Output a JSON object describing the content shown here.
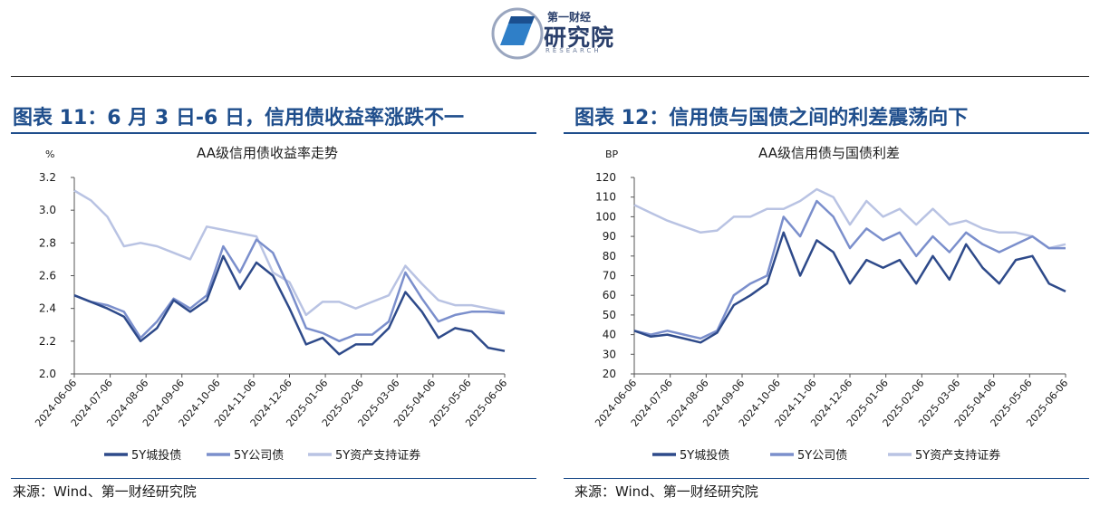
{
  "header": {
    "logo_top": "第一财经",
    "logo_main": "研究院",
    "logo_sub": "RESEARCH"
  },
  "left_panel": {
    "figure_title": "图表 11：6 月 3 日-6 日，信用债收益率涨跌不一",
    "source": "来源：Wind、第一财经研究院"
  },
  "right_panel": {
    "figure_title": "图表 12：信用债与国债之间的利差震荡向下",
    "source": "来源：Wind、第一财经研究院"
  },
  "chart_data": [
    {
      "type": "line",
      "title": "AA级信用债收益率走势",
      "ylabel": "%",
      "ylim": [
        2.0,
        3.2
      ],
      "yticks": [
        2.0,
        2.2,
        2.4,
        2.6,
        2.8,
        3.0,
        3.2
      ],
      "ytick_labels": [
        "2.0",
        "2.2",
        "2.4",
        "2.6",
        "2.8",
        "3.0",
        "3.2"
      ],
      "x_labels": [
        "2024-06-06",
        "2024-07-06",
        "2024-08-06",
        "2024-09-06",
        "2024-10-06",
        "2024-11-06",
        "2024-12-06",
        "2025-01-06",
        "2025-02-06",
        "2025-03-06",
        "2025-04-06",
        "2025-05-06",
        "2025-06-06"
      ],
      "grid": false,
      "legend_position": "bottom",
      "colors": [
        "#2e4a8a",
        "#7b8fcc",
        "#b9c3e3"
      ],
      "series": [
        {
          "name": "5Y城投债",
          "values": [
            2.48,
            2.44,
            2.4,
            2.35,
            2.2,
            2.28,
            2.45,
            2.38,
            2.45,
            2.72,
            2.52,
            2.68,
            2.6,
            2.4,
            2.18,
            2.22,
            2.12,
            2.18,
            2.18,
            2.28,
            2.5,
            2.38,
            2.22,
            2.28,
            2.26,
            2.16,
            2.14
          ]
        },
        {
          "name": "5Y公司债",
          "values": [
            2.48,
            2.44,
            2.42,
            2.38,
            2.22,
            2.32,
            2.46,
            2.4,
            2.48,
            2.78,
            2.62,
            2.82,
            2.74,
            2.52,
            2.28,
            2.25,
            2.2,
            2.24,
            2.24,
            2.32,
            2.62,
            2.46,
            2.32,
            2.36,
            2.38,
            2.38,
            2.37
          ]
        },
        {
          "name": "5Y资产支持证券",
          "values": [
            3.12,
            3.06,
            2.96,
            2.78,
            2.8,
            2.78,
            2.74,
            2.7,
            2.9,
            2.88,
            2.86,
            2.84,
            2.62,
            2.56,
            2.36,
            2.44,
            2.44,
            2.4,
            2.44,
            2.48,
            2.66,
            2.55,
            2.45,
            2.42,
            2.42,
            2.4,
            2.38
          ]
        }
      ]
    },
    {
      "type": "line",
      "title": "AA级信用债与国债利差",
      "ylabel": "BP",
      "ylim": [
        20,
        120
      ],
      "yticks": [
        20,
        30,
        40,
        50,
        60,
        70,
        80,
        90,
        100,
        110,
        120
      ],
      "ytick_labels": [
        "20",
        "30",
        "40",
        "50",
        "60",
        "70",
        "80",
        "90",
        "100",
        "110",
        "120"
      ],
      "x_labels": [
        "2024-06-06",
        "2024-07-06",
        "2024-08-06",
        "2024-09-06",
        "2024-10-06",
        "2024-11-06",
        "2024-12-06",
        "2025-01-06",
        "2025-02-06",
        "2025-03-06",
        "2025-04-06",
        "2025-05-06",
        "2025-06-06"
      ],
      "grid": false,
      "legend_position": "bottom",
      "colors": [
        "#2e4a8a",
        "#7b8fcc",
        "#b9c3e3"
      ],
      "series": [
        {
          "name": "5Y城投债",
          "values": [
            42,
            39,
            40,
            38,
            36,
            41,
            55,
            60,
            66,
            92,
            70,
            88,
            82,
            66,
            78,
            74,
            78,
            66,
            80,
            68,
            86,
            74,
            66,
            78,
            80,
            66,
            62
          ]
        },
        {
          "name": "5Y公司债",
          "values": [
            42,
            40,
            42,
            40,
            38,
            42,
            60,
            66,
            70,
            100,
            90,
            108,
            100,
            84,
            94,
            88,
            92,
            80,
            90,
            82,
            92,
            86,
            82,
            86,
            90,
            84,
            84
          ]
        },
        {
          "name": "5Y资产支持证券",
          "values": [
            106,
            102,
            98,
            95,
            92,
            93,
            100,
            100,
            104,
            104,
            108,
            114,
            110,
            96,
            108,
            100,
            104,
            96,
            104,
            96,
            98,
            94,
            92,
            92,
            90,
            84,
            86
          ]
        }
      ]
    }
  ]
}
